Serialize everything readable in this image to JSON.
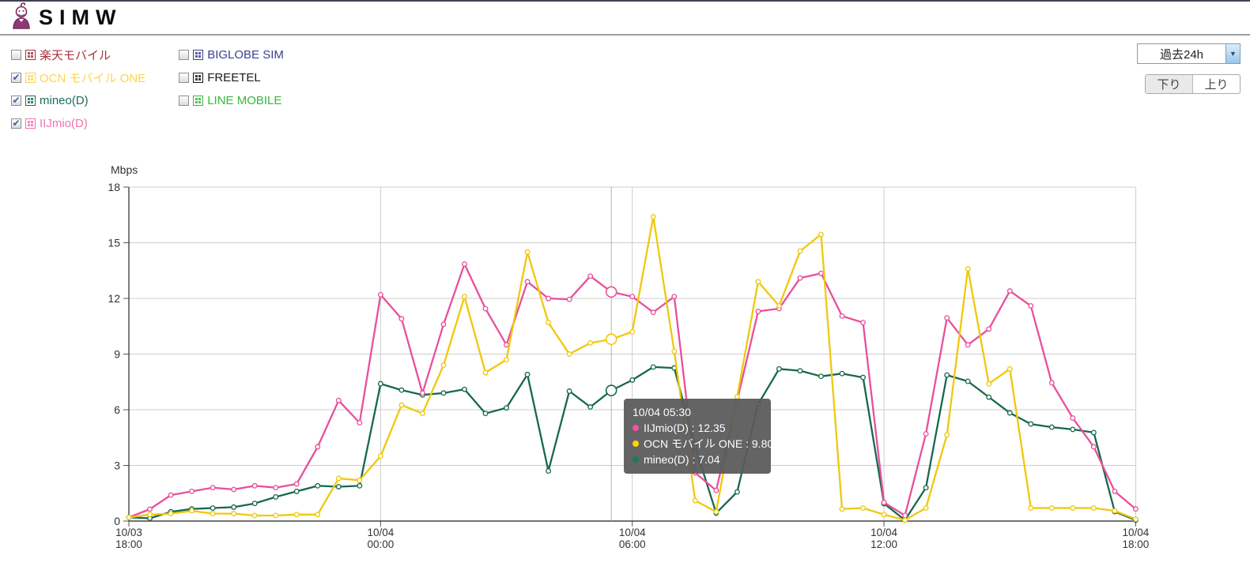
{
  "header": {
    "logo_text": "SIMW"
  },
  "filters": {
    "column1": [
      {
        "label": "楽天モバイル",
        "checked": false,
        "color": "#a8323c",
        "line_color": "#a8323c"
      },
      {
        "label": "OCN モバイル ONE",
        "checked": true,
        "color": "#ffd34d",
        "line_color": "#f0c80a"
      },
      {
        "label": "mineo(D)",
        "checked": true,
        "color": "#1e6a5b",
        "line_color": "#17684d"
      },
      {
        "label": "IIJmio(D)",
        "checked": true,
        "color": "#f173ae",
        "line_color": "#e84f9c"
      }
    ],
    "column2": [
      {
        "label": "BIGLOBE SIM",
        "checked": false,
        "color": "#3c3f8f",
        "line_color": "#3c3f8f"
      },
      {
        "label": "FREETEL",
        "checked": false,
        "color": "#1a1a1a",
        "line_color": "#1a1a1a"
      },
      {
        "label": "LINE MOBILE",
        "checked": false,
        "color": "#35b83b",
        "line_color": "#35b83b"
      }
    ]
  },
  "controls": {
    "period_select": "過去24h",
    "direction_buttons": [
      {
        "label": "下り",
        "selected": true
      },
      {
        "label": "上り",
        "selected": false
      }
    ]
  },
  "chart_data": {
    "type": "line",
    "title": "",
    "ylabel": "Mbps",
    "ylim": [
      0,
      18
    ],
    "y_ticks": [
      0,
      3,
      6,
      9,
      12,
      15,
      18
    ],
    "grid": true,
    "x_tick_indices": [
      0,
      12,
      24,
      36,
      48
    ],
    "x_tick_labels": [
      [
        "10/03",
        "18:00"
      ],
      [
        "10/04",
        "00:00"
      ],
      [
        "10/04",
        "06:00"
      ],
      [
        "10/04",
        "12:00"
      ],
      [
        "10/04",
        "18:00"
      ]
    ],
    "x_interval_minutes": 30,
    "cursor_index": 23,
    "series": [
      {
        "name": "mineo(D)",
        "color": "#17684d",
        "values": [
          0.2,
          0.15,
          0.5,
          0.65,
          0.7,
          0.75,
          0.95,
          1.3,
          1.6,
          1.9,
          1.85,
          1.9,
          7.4,
          7.06,
          6.8,
          6.9,
          7.1,
          5.8,
          6.1,
          7.9,
          2.7,
          7.0,
          6.15,
          7.04,
          7.6,
          8.3,
          8.25,
          4.0,
          0.43,
          1.57,
          6.3,
          8.2,
          8.1,
          7.8,
          7.95,
          7.74,
          0.94,
          0.05,
          1.8,
          7.87,
          7.53,
          6.68,
          5.83,
          5.23,
          5.06,
          4.94,
          4.77,
          0.51,
          0.05
        ]
      },
      {
        "name": "IIJmio(D)",
        "color": "#e84f9c",
        "values": [
          0.2,
          0.64,
          1.4,
          1.6,
          1.8,
          1.7,
          1.9,
          1.8,
          2.0,
          4.0,
          6.5,
          5.3,
          12.2,
          10.9,
          6.9,
          10.6,
          13.85,
          11.45,
          9.5,
          12.9,
          12.0,
          11.95,
          13.2,
          12.35,
          12.1,
          11.25,
          12.1,
          2.6,
          1.65,
          6.5,
          11.3,
          11.45,
          13.1,
          13.35,
          11.05,
          10.7,
          1.0,
          0.3,
          4.7,
          10.95,
          9.5,
          10.35,
          12.4,
          11.6,
          7.45,
          5.55,
          4.0,
          1.6,
          0.65
        ]
      },
      {
        "name": "OCN モバイル ONE",
        "color": "#f0c80a",
        "values": [
          0.2,
          0.35,
          0.4,
          0.55,
          0.4,
          0.4,
          0.3,
          0.3,
          0.35,
          0.35,
          2.3,
          2.2,
          3.5,
          6.25,
          5.8,
          8.4,
          12.1,
          8.0,
          8.7,
          14.5,
          10.7,
          9.0,
          9.6,
          9.8,
          10.2,
          16.4,
          9.15,
          1.1,
          0.5,
          6.7,
          12.9,
          11.6,
          14.55,
          15.45,
          0.65,
          0.7,
          0.35,
          0.05,
          0.7,
          4.65,
          13.6,
          7.4,
          8.2,
          0.7,
          0.7,
          0.7,
          0.7,
          0.55,
          0.1
        ]
      }
    ]
  },
  "tooltip": {
    "time": "10/04 05:30",
    "rows": [
      {
        "name": "IIJmio(D)",
        "value": "12.35",
        "color": "#f056a0"
      },
      {
        "name": "OCN モバイル ONE",
        "value": "9.80",
        "color": "#ffd20a"
      },
      {
        "name": "mineo(D)",
        "value": "7.04",
        "color": "#1d7a55"
      }
    ]
  }
}
